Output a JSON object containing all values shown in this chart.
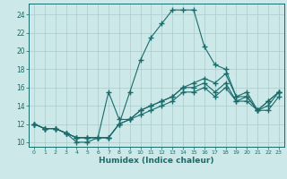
{
  "xlabel": "Humidex (Indice chaleur)",
  "background_color": "#cce8e8",
  "grid_color": "#aacccc",
  "line_color": "#1a6b6b",
  "xlim": [
    -0.5,
    23.5
  ],
  "ylim": [
    9.5,
    25.2
  ],
  "yticks": [
    10,
    12,
    14,
    16,
    18,
    20,
    22,
    24
  ],
  "xticks": [
    0,
    1,
    2,
    3,
    4,
    5,
    6,
    7,
    8,
    9,
    10,
    11,
    12,
    13,
    14,
    15,
    16,
    17,
    18,
    19,
    20,
    21,
    22,
    23
  ],
  "line_peak_x": [
    0,
    1,
    2,
    3,
    4,
    5,
    6,
    7,
    8,
    9,
    10,
    11,
    12,
    13,
    14,
    15,
    16,
    17,
    18,
    19,
    20,
    21,
    22,
    23
  ],
  "line_peak_y": [
    12.0,
    11.5,
    11.5,
    11.0,
    10.0,
    10.0,
    10.5,
    10.5,
    12.0,
    15.5,
    19.0,
    21.5,
    23.0,
    24.5,
    24.5,
    24.5,
    20.5,
    18.5,
    18.0,
    15.0,
    15.0,
    13.5,
    14.5,
    15.5
  ],
  "line_mid1_x": [
    0,
    1,
    2,
    3,
    4,
    5,
    6,
    7,
    8,
    9,
    10,
    11,
    12,
    13,
    14,
    15,
    16,
    17,
    18,
    19,
    20,
    21,
    22,
    23
  ],
  "line_mid1_y": [
    12.0,
    11.5,
    11.5,
    11.0,
    10.5,
    10.5,
    10.5,
    15.5,
    12.5,
    12.5,
    13.5,
    14.0,
    14.5,
    15.0,
    16.0,
    16.5,
    17.0,
    16.5,
    17.5,
    15.0,
    15.5,
    13.5,
    14.5,
    15.5
  ],
  "line_mid2_x": [
    0,
    1,
    2,
    3,
    4,
    5,
    6,
    7,
    8,
    9,
    10,
    11,
    12,
    13,
    14,
    15,
    16,
    17,
    18,
    19,
    20,
    21,
    22,
    23
  ],
  "line_mid2_y": [
    12.0,
    11.5,
    11.5,
    11.0,
    10.5,
    10.5,
    10.5,
    10.5,
    12.0,
    12.5,
    13.5,
    14.0,
    14.5,
    15.0,
    16.0,
    16.0,
    16.5,
    15.5,
    16.5,
    14.5,
    15.0,
    13.5,
    14.0,
    15.5
  ],
  "line_flat_x": [
    0,
    1,
    2,
    3,
    4,
    5,
    6,
    7,
    8,
    9,
    10,
    11,
    12,
    13,
    14,
    15,
    16,
    17,
    18,
    19,
    20,
    21,
    22,
    23
  ],
  "line_flat_y": [
    12.0,
    11.5,
    11.5,
    11.0,
    10.5,
    10.5,
    10.5,
    10.5,
    12.0,
    12.5,
    13.0,
    13.5,
    14.0,
    14.5,
    15.5,
    15.5,
    16.0,
    15.0,
    16.0,
    14.5,
    14.5,
    13.5,
    13.5,
    15.0
  ]
}
